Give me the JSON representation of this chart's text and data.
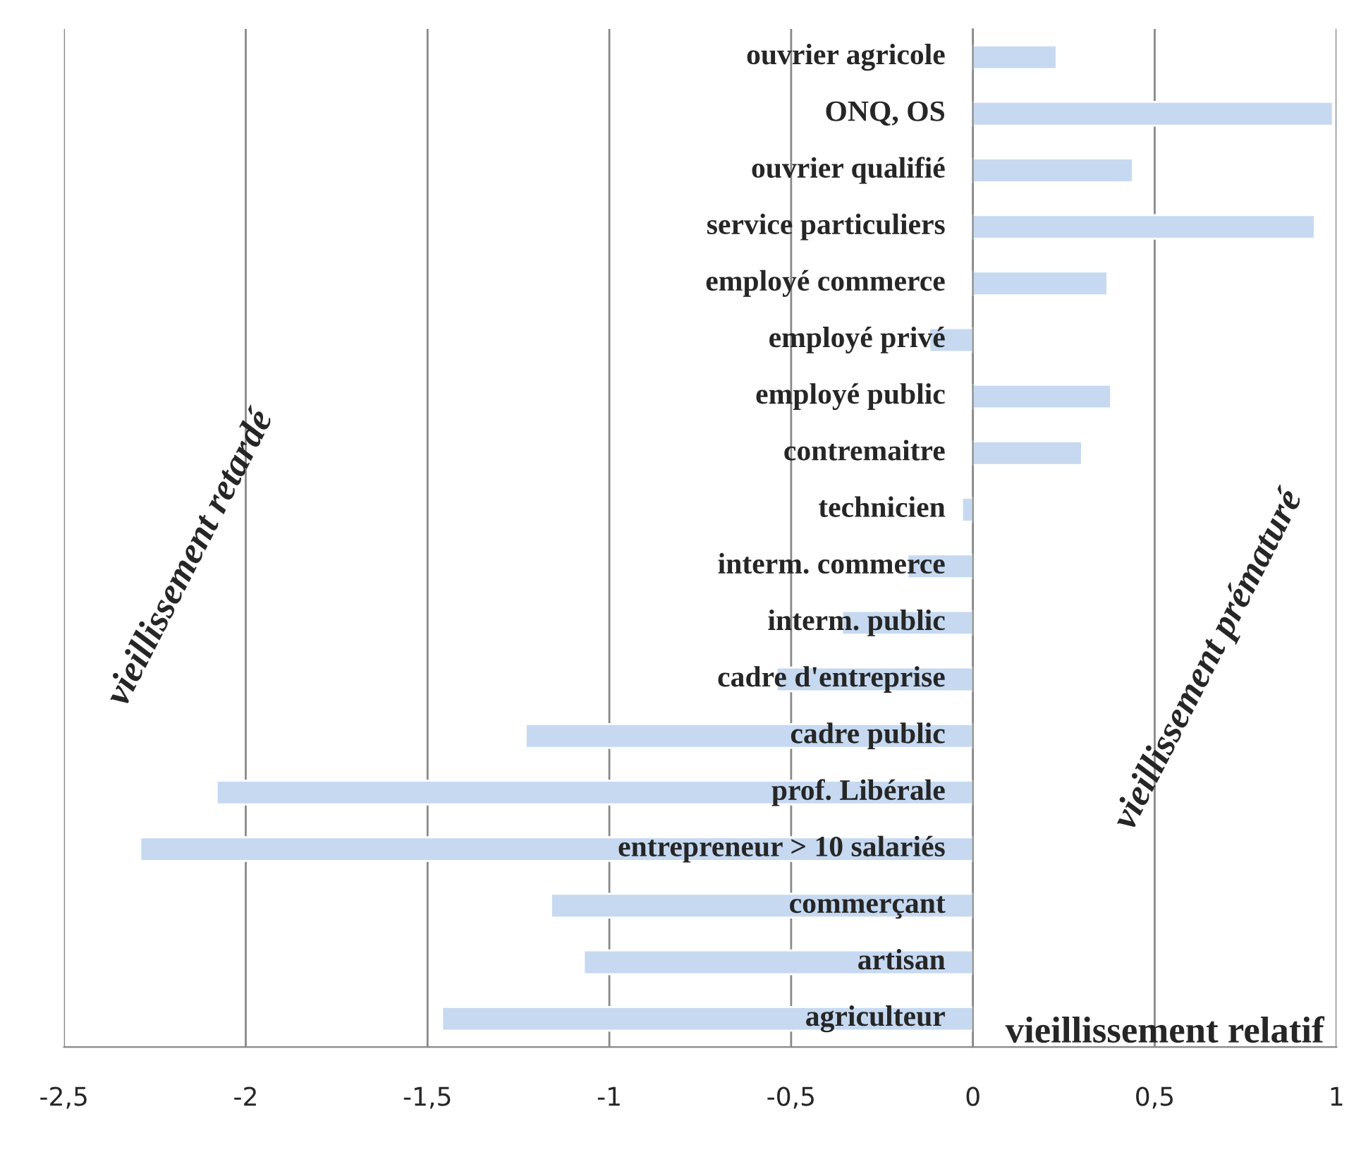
{
  "chart_data": {
    "type": "bar",
    "orientation": "horizontal",
    "categories": [
      "ouvrier agricole",
      "ONQ, OS",
      "ouvrier qualifié",
      "service particuliers",
      "employé commerce",
      "employé privé",
      "employé public",
      "contremaitre",
      "technicien",
      "interm. commerce",
      "interm. public",
      "cadre d'entreprise",
      "cadre public",
      "prof. Libérale",
      "entrepreneur > 10 salariés",
      "commerçant",
      "artisan",
      "agriculteur"
    ],
    "values": [
      0.23,
      0.99,
      0.44,
      0.94,
      0.37,
      -0.12,
      0.38,
      0.3,
      -0.03,
      -0.18,
      -0.36,
      -0.54,
      -1.23,
      -2.08,
      -2.29,
      -1.16,
      -1.07,
      -1.46
    ],
    "color": "#c6d9f1",
    "xlabel": "vieillissement relatif",
    "annotations": [
      "vieillissement retardé",
      "vieillissement prématuré"
    ],
    "xlim": [
      -2.5,
      1
    ],
    "xticks": [
      {
        "value": -2.5,
        "label": "-2,5"
      },
      {
        "value": -2,
        "label": "-2"
      },
      {
        "value": -1.5,
        "label": "-1,5"
      },
      {
        "value": -1,
        "label": "-1"
      },
      {
        "value": -0.5,
        "label": "-0,5"
      },
      {
        "value": 0,
        "label": "0"
      },
      {
        "value": 0.5,
        "label": "0,5"
      },
      {
        "value": 1,
        "label": "1"
      }
    ],
    "grid": "x",
    "legend": false
  }
}
